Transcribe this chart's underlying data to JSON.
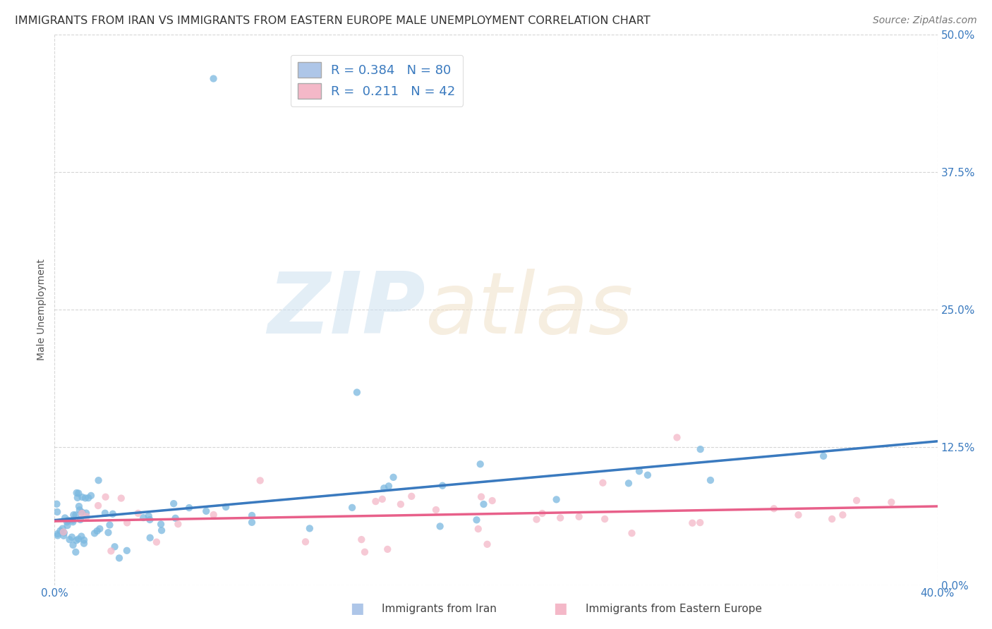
{
  "title": "IMMIGRANTS FROM IRAN VS IMMIGRANTS FROM EASTERN EUROPE MALE UNEMPLOYMENT CORRELATION CHART",
  "source": "Source: ZipAtlas.com",
  "ylabel": "Male Unemployment",
  "xlim": [
    0.0,
    0.4
  ],
  "ylim": [
    0.0,
    0.5
  ],
  "xlabel_ticks_labels": [
    "0.0%",
    "40.0%"
  ],
  "xlabel_ticks_vals": [
    0.0,
    0.4
  ],
  "ylabel_ticks_labels": [
    "0.0%",
    "12.5%",
    "25.0%",
    "37.5%",
    "50.0%"
  ],
  "ylabel_ticks_vals": [
    0.0,
    0.125,
    0.25,
    0.375,
    0.5
  ],
  "legend1_color": "#aec6e8",
  "legend2_color": "#f4b8c8",
  "iran_color": "#7ab8e0",
  "eeurope_color": "#f4b8c8",
  "trendline1_color": "#3a7abf",
  "trendline2_color": "#e8608a",
  "trendline_dashed_color": "#b0b0b0",
  "background_color": "#ffffff",
  "grid_color": "#cccccc",
  "tick_color": "#3a7abf",
  "title_fontsize": 11.5,
  "source_fontsize": 10,
  "axis_label_fontsize": 10,
  "tick_fontsize": 11,
  "legend_fontsize": 13
}
